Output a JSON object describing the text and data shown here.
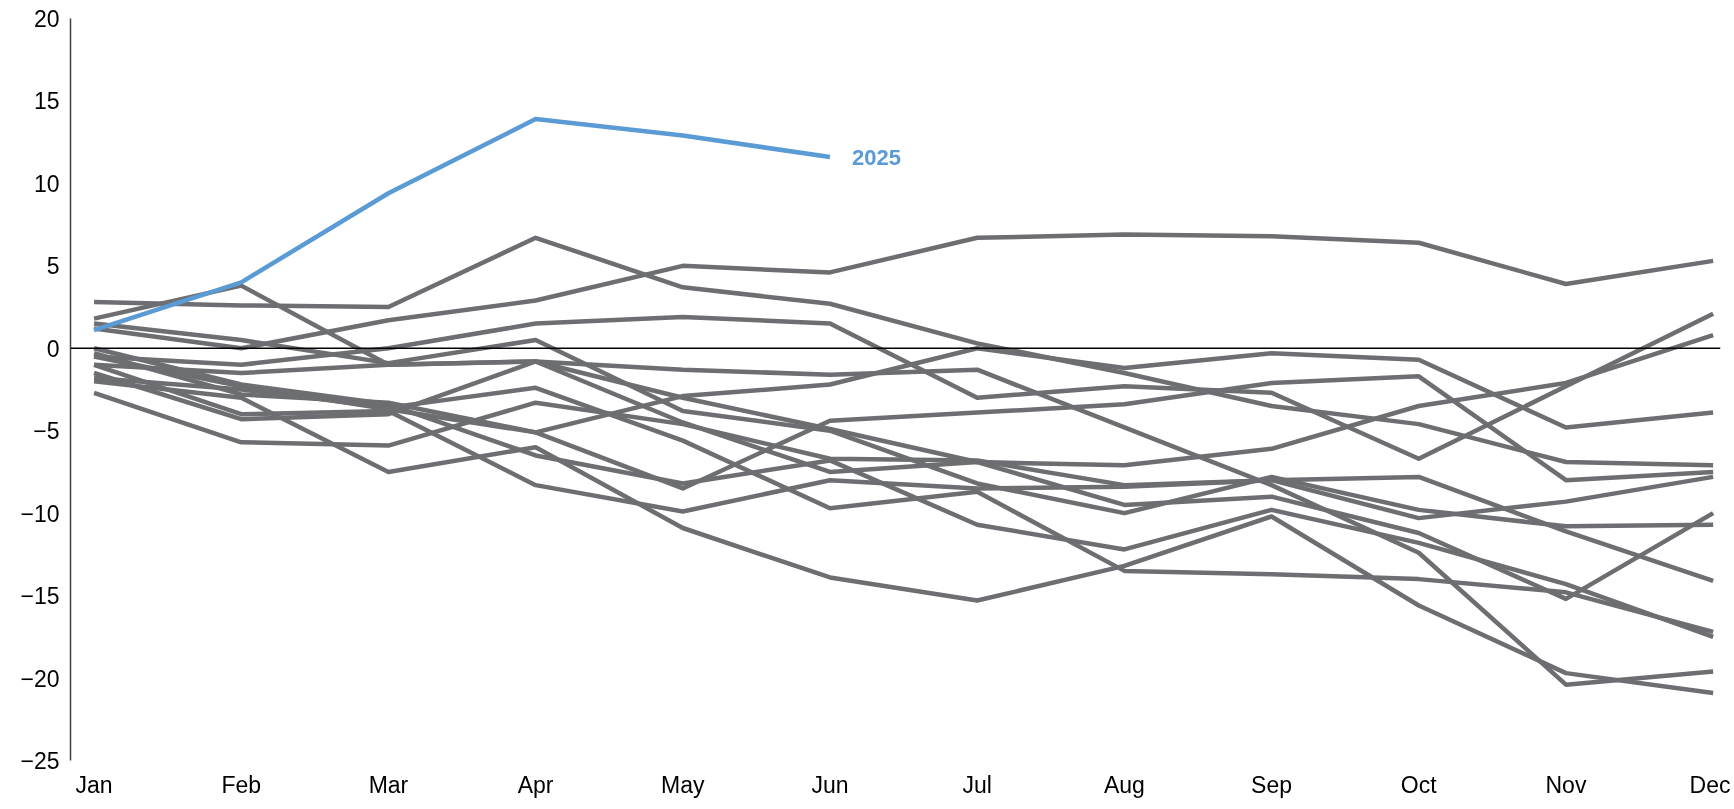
{
  "chart_data": {
    "type": "line",
    "categories": [
      "Jan",
      "Feb",
      "Mar",
      "Apr",
      "May",
      "Jun",
      "Jul",
      "Aug",
      "Sep",
      "Oct",
      "Nov",
      "Dec"
    ],
    "ylim": [
      -25,
      20
    ],
    "yticks": [
      -25,
      -20,
      -15,
      -10,
      -5,
      0,
      5,
      10,
      15,
      20
    ],
    "grid": false,
    "legend": false,
    "marker": "none",
    "line_style": "solid",
    "ref_lines": [
      {
        "axis": "y",
        "value": 0,
        "color": "#000000"
      }
    ],
    "series": [
      {
        "color": "#6d6e71",
        "values": [
          1.2,
          0.0,
          1.7,
          2.9,
          5.0,
          4.6,
          6.7,
          6.9,
          6.8,
          6.4,
          3.9,
          5.3
        ]
      },
      {
        "color": "#6d6e71",
        "values": [
          2.8,
          2.6,
          2.5,
          6.7,
          3.7,
          2.7,
          0.3,
          -1.5,
          -3.5,
          -4.6,
          -6.9,
          -7.1
        ]
      },
      {
        "color": "#6d6e71",
        "values": [
          -0.5,
          -1.0,
          0.0,
          1.5,
          1.9,
          1.5,
          -3.0,
          -2.3,
          -2.7,
          -6.7,
          -2.3,
          2.1
        ]
      },
      {
        "color": "#6d6e71",
        "values": [
          1.8,
          3.8,
          -1.0,
          -0.8,
          -3.0,
          -4.9,
          -6.9,
          -7.1,
          -6.1,
          -3.5,
          -2.1,
          0.8
        ]
      },
      {
        "color": "#6d6e71",
        "values": [
          -0.5,
          -2.3,
          -3.7,
          -5.1,
          -2.9,
          -2.2,
          0.0,
          -1.2,
          -0.3,
          -0.7,
          -4.8,
          -3.9
        ]
      },
      {
        "color": "#6d6e71",
        "values": [
          1.5,
          0.5,
          -0.9,
          0.5,
          -3.8,
          -5.0,
          -8.2,
          -10.0,
          -7.8,
          -9.8,
          -10.8,
          -10.7
        ]
      },
      {
        "color": "#6d6e71",
        "values": [
          -1.0,
          -1.5,
          -1.0,
          -0.8,
          -1.3,
          -1.6,
          -1.3,
          -4.8,
          -8.3,
          -12.4,
          -20.4,
          -19.6
        ]
      },
      {
        "color": "#6d6e71",
        "values": [
          -2.7,
          -5.7,
          -5.9,
          -3.3,
          -4.6,
          -6.7,
          -6.8,
          -8.3,
          -8.0,
          -7.8,
          -11.1,
          -14.1
        ]
      },
      {
        "color": "#6d6e71",
        "values": [
          -1.5,
          -4.3,
          -4.0,
          -0.8,
          -4.5,
          -7.5,
          -6.9,
          -9.5,
          -9.0,
          -11.2,
          -15.2,
          -10.0
        ]
      },
      {
        "color": "#6d6e71",
        "values": [
          -2.0,
          -3.0,
          -7.5,
          -6.0,
          -10.9,
          -13.9,
          -15.3,
          -13.2,
          -10.2,
          -15.6,
          -19.7,
          -20.9
        ]
      },
      {
        "color": "#6d6e71",
        "values": [
          -1.0,
          -4.0,
          -3.8,
          -8.3,
          -9.9,
          -8.0,
          -8.5,
          -8.4,
          -8.0,
          -10.3,
          -9.3,
          -7.8
        ]
      },
      {
        "color": "#6d6e71",
        "values": [
          0.0,
          -2.2,
          -3.4,
          -6.5,
          -8.2,
          -6.8,
          -10.7,
          -12.2,
          -9.8,
          -11.8,
          -14.3,
          -17.5
        ]
      },
      {
        "color": "#6d6e71",
        "values": [
          -0.3,
          -2.8,
          -3.3,
          -5.1,
          -8.5,
          -4.4,
          -3.9,
          -3.4,
          -2.1,
          -1.7,
          -8.0,
          -7.5
        ]
      },
      {
        "color": "#6d6e71",
        "values": [
          -1.8,
          -2.5,
          -3.6,
          -2.4,
          -5.6,
          -9.7,
          -8.7,
          -13.5,
          -13.7,
          -14.0,
          -14.8,
          -17.2
        ]
      },
      {
        "name": "2025",
        "color": "#5b9bd5",
        "values": [
          1.1,
          4.0,
          9.4,
          13.9,
          12.9,
          11.6,
          null,
          null,
          null,
          null,
          null,
          null
        ]
      }
    ]
  }
}
